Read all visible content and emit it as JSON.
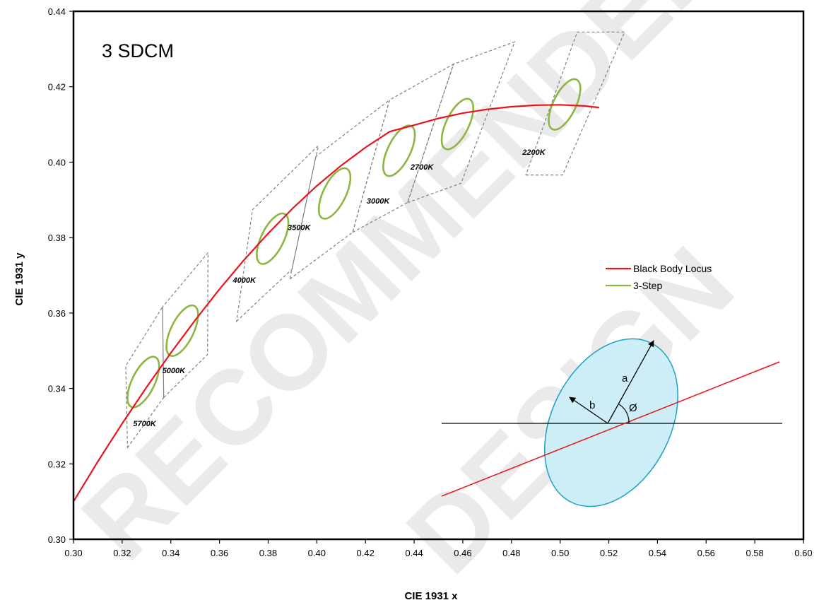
{
  "chart_data": {
    "type": "scatter",
    "title": "3 SDCM",
    "xlabel": "CIE 1931 x",
    "ylabel": "CIE 1931 y",
    "xlim": [
      0.3,
      0.6
    ],
    "ylim": [
      0.3,
      0.44
    ],
    "x_ticks": [
      "0.30",
      "0.32",
      "0.34",
      "0.36",
      "0.38",
      "0.40",
      "0.42",
      "0.44",
      "0.46",
      "0.48",
      "0.50",
      "0.52",
      "0.54",
      "0.56",
      "0.58",
      "0.60"
    ],
    "y_ticks": [
      "0.30",
      "0.32",
      "0.34",
      "0.36",
      "0.38",
      "0.40",
      "0.42",
      "0.44"
    ],
    "grid": false,
    "legend_position": "right",
    "legend": [
      {
        "label": "Black Body Locus",
        "color": "#e8141c"
      },
      {
        "label": "3-Step",
        "color": "#8db542"
      }
    ],
    "locus": [
      [
        0.3,
        0.31
      ],
      [
        0.31,
        0.3206
      ],
      [
        0.32,
        0.3307
      ],
      [
        0.33,
        0.3403
      ],
      [
        0.34,
        0.3494
      ],
      [
        0.35,
        0.3581
      ],
      [
        0.36,
        0.3663
      ],
      [
        0.37,
        0.374
      ],
      [
        0.38,
        0.3811
      ],
      [
        0.39,
        0.3877
      ],
      [
        0.4,
        0.3937
      ],
      [
        0.41,
        0.3991
      ],
      [
        0.42,
        0.4039
      ],
      [
        0.43,
        0.4081
      ],
      [
        0.44,
        0.4098
      ],
      [
        0.45,
        0.4116
      ],
      [
        0.46,
        0.413
      ],
      [
        0.47,
        0.414
      ],
      [
        0.48,
        0.4147
      ],
      [
        0.49,
        0.4151
      ],
      [
        0.5,
        0.4152
      ],
      [
        0.51,
        0.4149
      ],
      [
        0.516,
        0.4145
      ]
    ],
    "ellipses": [
      {
        "label": "5700K",
        "cx": 0.3287,
        "cy": 0.3417,
        "label_x": 0.3245,
        "label_y": 0.33
      },
      {
        "label": "5000K",
        "cx": 0.3447,
        "cy": 0.3553,
        "label_x": 0.3365,
        "label_y": 0.344
      },
      {
        "label": "4000K",
        "cx": 0.3818,
        "cy": 0.3797,
        "label_x": 0.3655,
        "label_y": 0.368
      },
      {
        "label": "3500K",
        "cx": 0.4073,
        "cy": 0.3917,
        "label_x": 0.388,
        "label_y": 0.382
      },
      {
        "label": "3000K",
        "cx": 0.4338,
        "cy": 0.403,
        "label_x": 0.4205,
        "label_y": 0.389
      },
      {
        "label": "2700K",
        "cx": 0.4578,
        "cy": 0.4101,
        "label_x": 0.4385,
        "label_y": 0.398
      },
      {
        "label": "2200K",
        "cx": 0.5018,
        "cy": 0.4153,
        "label_x": 0.4845,
        "label_y": 0.402
      }
    ],
    "quadrangles": [
      {
        "cct": "5700K",
        "points": [
          [
            0.3222,
            0.3243
          ],
          [
            0.3371,
            0.3376
          ],
          [
            0.3366,
            0.3616
          ],
          [
            0.3215,
            0.346
          ]
        ]
      },
      {
        "cct": "5000K",
        "points": [
          [
            0.3371,
            0.3376
          ],
          [
            0.3551,
            0.349
          ],
          [
            0.3553,
            0.376
          ],
          [
            0.3366,
            0.3616
          ]
        ]
      },
      {
        "cct": "4000K",
        "points": [
          [
            0.367,
            0.3578
          ],
          [
            0.3898,
            0.3716
          ],
          [
            0.4006,
            0.4044
          ],
          [
            0.3736,
            0.3874
          ]
        ]
      },
      {
        "cct": "3500K",
        "points": [
          [
            0.3889,
            0.369
          ],
          [
            0.4147,
            0.3814
          ],
          [
            0.4299,
            0.4165
          ],
          [
            0.3996,
            0.4015
          ]
        ]
      },
      {
        "cct": "3000K",
        "points": [
          [
            0.4147,
            0.3814
          ],
          [
            0.4373,
            0.3893
          ],
          [
            0.4562,
            0.426
          ],
          [
            0.4299,
            0.4165
          ]
        ]
      },
      {
        "cct": "2700K",
        "points": [
          [
            0.4373,
            0.3893
          ],
          [
            0.4593,
            0.3944
          ],
          [
            0.4813,
            0.4319
          ],
          [
            0.4562,
            0.426
          ]
        ]
      },
      {
        "cct": "2200K",
        "points": [
          [
            0.4859,
            0.3966
          ],
          [
            0.501,
            0.3966
          ],
          [
            0.5265,
            0.4345
          ],
          [
            0.507,
            0.4345
          ]
        ]
      }
    ],
    "inset_labels": {
      "a": "a",
      "b": "b",
      "phi": "Ø"
    },
    "watermark": [
      "RECOMMENDED",
      "DESIGN"
    ]
  }
}
